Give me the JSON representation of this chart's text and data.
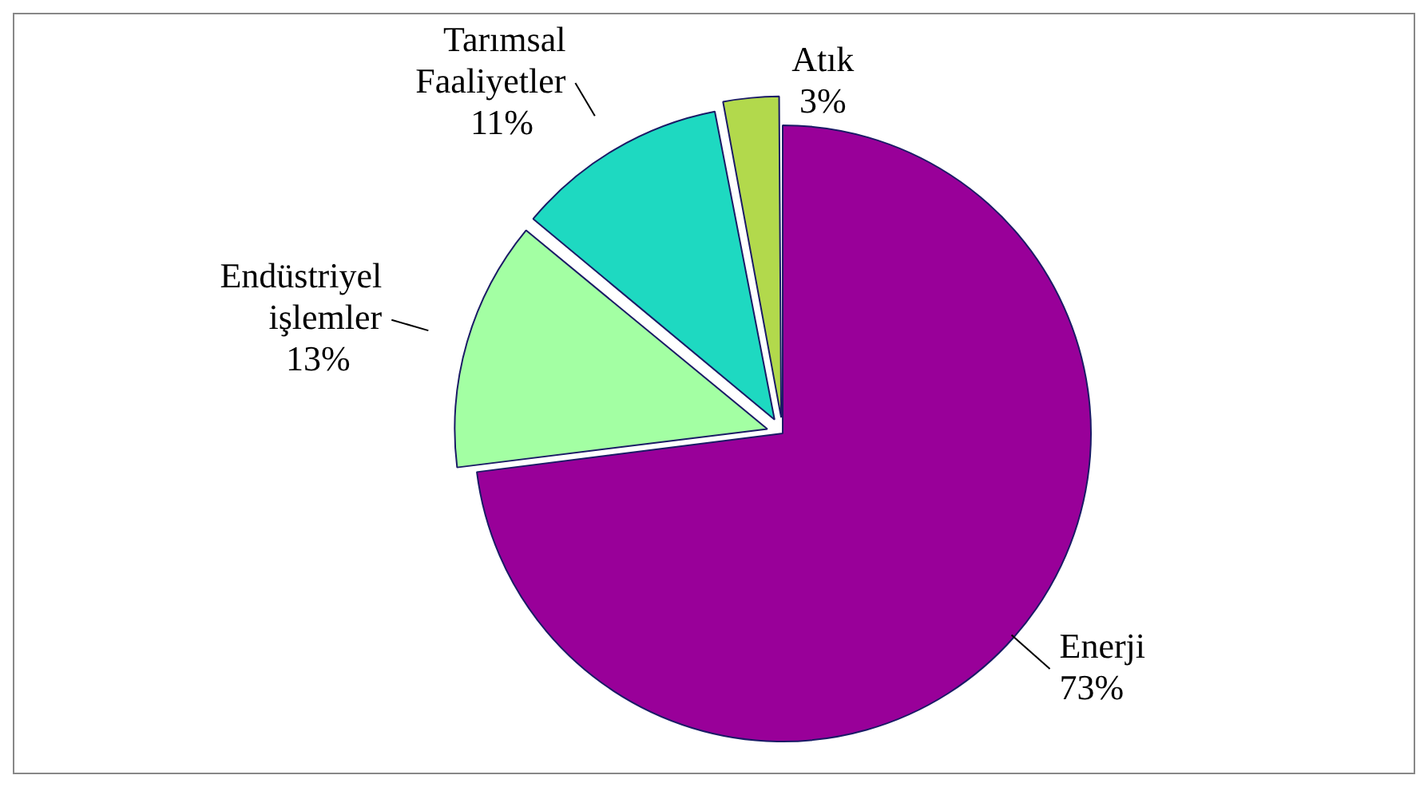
{
  "chart_data": {
    "type": "pie",
    "categories": [
      "Enerji",
      "Endüstriyel işlemler",
      "Tarımsal Faaliyetler",
      "Atık"
    ],
    "values": [
      73,
      13,
      11,
      3
    ],
    "colors": [
      "#990099",
      "#a3ffa3",
      "#1ed9c1",
      "#b2d94c"
    ],
    "value_labels": [
      "73%",
      "13%",
      "11%",
      "3%"
    ],
    "legend": false
  }
}
